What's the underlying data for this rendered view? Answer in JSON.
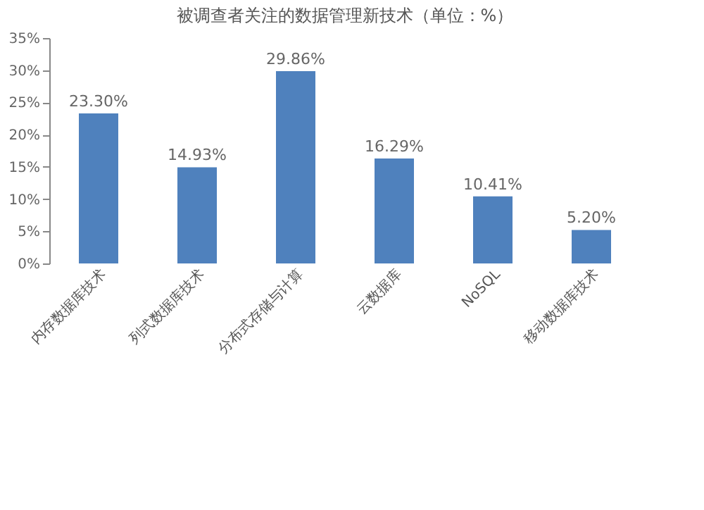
{
  "chart_data": {
    "type": "bar",
    "title": "被调查者关注的数据管理新技术（单位：%）",
    "categories": [
      "内存数据库技术",
      "列式数据库技术",
      "分布式存储与计算",
      "云数据库",
      "NoSQL",
      "移动数据库技术"
    ],
    "values": [
      23.3,
      14.93,
      29.86,
      16.29,
      10.41,
      5.2
    ],
    "value_labels": [
      "23.30%",
      "14.93%",
      "29.86%",
      "16.29%",
      "10.41%",
      "5.20%"
    ],
    "color": "#4f81bd",
    "ylim": [
      0,
      35
    ],
    "yticks": [
      {
        "value": 0,
        "label": "0%"
      },
      {
        "value": 5,
        "label": "5%"
      },
      {
        "value": 10,
        "label": "10%"
      },
      {
        "value": 15,
        "label": "15%"
      },
      {
        "value": 20,
        "label": "20%"
      },
      {
        "value": 25,
        "label": "25%"
      },
      {
        "value": 30,
        "label": "30%"
      },
      {
        "value": 35,
        "label": "35%"
      }
    ],
    "grid": false
  }
}
